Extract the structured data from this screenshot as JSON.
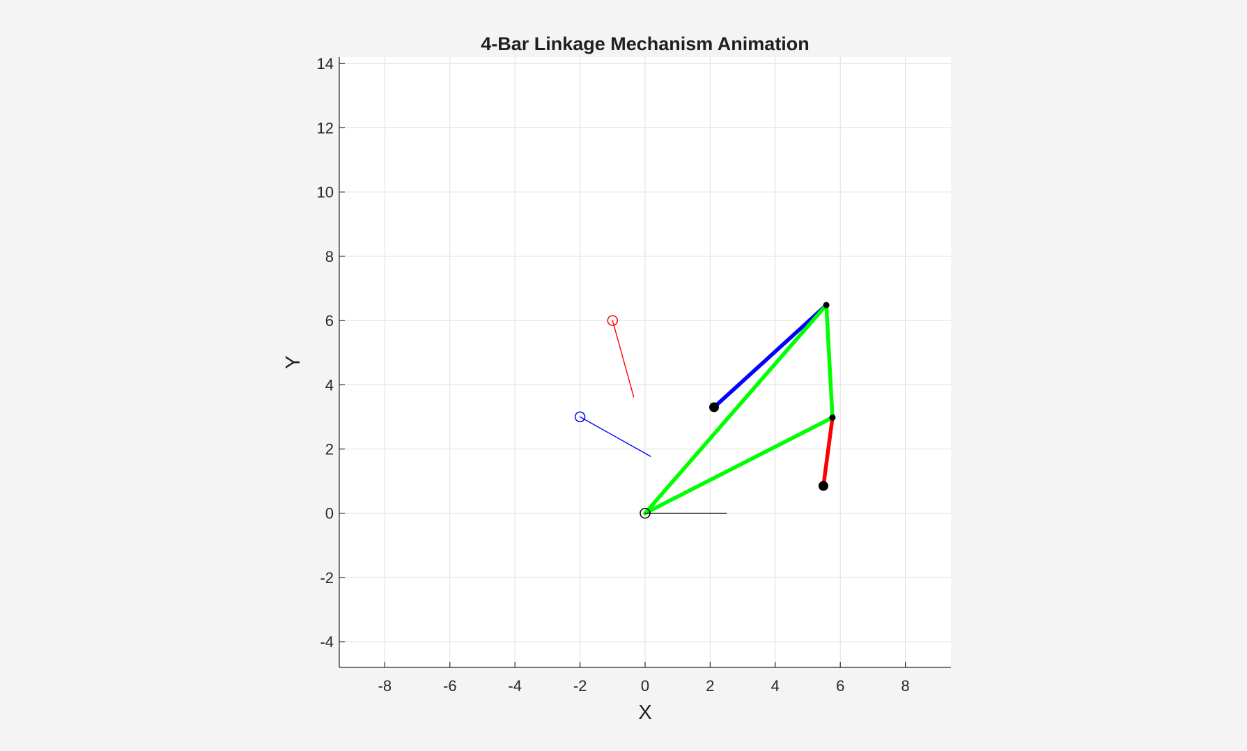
{
  "chart_data": {
    "type": "line",
    "title": "4-Bar Linkage Mechanism Animation",
    "xlabel": "X",
    "ylabel": "Y",
    "xlim": [
      -9.4,
      9.4
    ],
    "ylim": [
      -4.8,
      14.2
    ],
    "xticks": [
      "-8",
      "-6",
      "-4",
      "-2",
      "0",
      "2",
      "4",
      "6",
      "8"
    ],
    "yticks": [
      "-4",
      "-2",
      "0",
      "2",
      "4",
      "6",
      "8",
      "10",
      "12",
      "14"
    ],
    "xtick_values": [
      -8,
      -6,
      -4,
      -2,
      0,
      2,
      4,
      6,
      8
    ],
    "ytick_values": [
      -4,
      -2,
      0,
      2,
      4,
      6,
      8,
      10,
      12,
      14
    ],
    "grid": true,
    "background": "#ffffff",
    "segments": [
      {
        "id": "blue-link",
        "color": "#0000ff",
        "x": [
          2.12,
          5.57
        ],
        "y": [
          3.3,
          6.48
        ],
        "width": "thick"
      },
      {
        "id": "red-link",
        "color": "#ff0000",
        "x": [
          5.48,
          5.76
        ],
        "y": [
          0.85,
          2.98
        ],
        "width": "thick"
      },
      {
        "id": "green-link-top",
        "color": "#00ff00",
        "x": [
          0.0,
          5.57
        ],
        "y": [
          0.0,
          6.48
        ],
        "width": "thick"
      },
      {
        "id": "green-link-right",
        "color": "#00ff00",
        "x": [
          5.57,
          5.76
        ],
        "y": [
          6.48,
          2.98
        ],
        "width": "thick"
      },
      {
        "id": "green-link-bottom",
        "color": "#00ff00",
        "x": [
          0.0,
          5.76
        ],
        "y": [
          0.0,
          2.98
        ],
        "width": "thick"
      },
      {
        "id": "black-reference-line",
        "color": "#000000",
        "x": [
          0.0,
          2.5
        ],
        "y": [
          0.0,
          0.0
        ],
        "width": "thin"
      },
      {
        "id": "blue-reference-line",
        "color": "#0000ff",
        "x": [
          -2.0,
          0.17
        ],
        "y": [
          3.0,
          1.77
        ],
        "width": "thin"
      },
      {
        "id": "red-reference-line",
        "color": "#ff0000",
        "x": [
          -1.0,
          -0.35
        ],
        "y": [
          6.0,
          3.62
        ],
        "width": "thin"
      }
    ],
    "points": [
      {
        "id": "blue-link-pivot",
        "x": 2.12,
        "y": 3.3,
        "color": "#000000",
        "filled": true,
        "size": "large"
      },
      {
        "id": "red-link-pivot",
        "x": 5.48,
        "y": 0.85,
        "color": "#000000",
        "filled": true,
        "size": "large"
      },
      {
        "id": "top-joint",
        "x": 5.57,
        "y": 6.48,
        "color": "#000000",
        "filled": true,
        "size": "small"
      },
      {
        "id": "right-joint",
        "x": 5.76,
        "y": 2.98,
        "color": "#000000",
        "filled": true,
        "size": "small"
      },
      {
        "id": "origin-circle",
        "x": 0.0,
        "y": 0.0,
        "color": "#000000",
        "filled": false,
        "size": "marker"
      },
      {
        "id": "blue-reference-circle",
        "x": -2.0,
        "y": 3.0,
        "color": "#0000ff",
        "filled": false,
        "size": "marker"
      },
      {
        "id": "red-reference-circle",
        "x": -1.0,
        "y": 6.0,
        "color": "#ff0000",
        "filled": false,
        "size": "marker"
      }
    ]
  }
}
